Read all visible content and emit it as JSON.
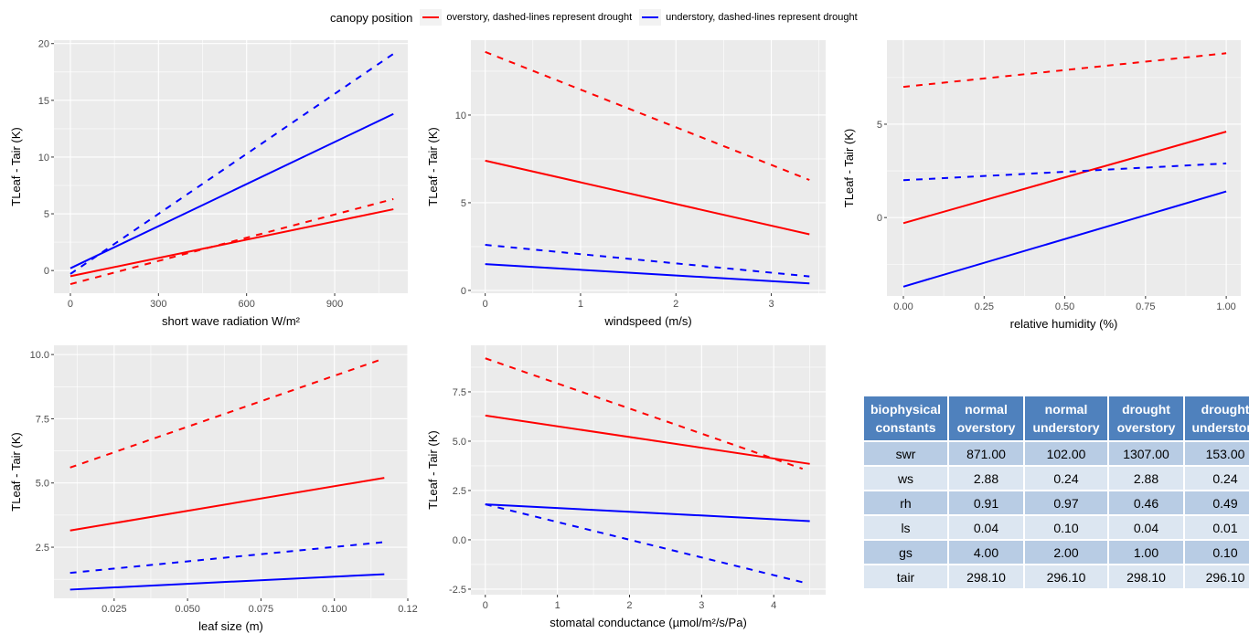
{
  "legend": {
    "title": "canopy position",
    "items": [
      {
        "label": "overstory, dashed-lines represent drought",
        "color": "#FF0000"
      },
      {
        "label": "understory, dashed-lines represent drought",
        "color": "#0000FF"
      }
    ]
  },
  "chart_data": [
    {
      "type": "line",
      "xlabel": "short wave radiation W/m²",
      "ylabel": "TLeaf - Tair (K)",
      "xlim": [
        -56,
        1149
      ],
      "ylim": [
        -2.0,
        20.3
      ],
      "xticks": [
        0,
        300,
        600,
        900
      ],
      "xtick_labels": [
        "0",
        "300",
        "600",
        "900"
      ],
      "yticks": [
        0,
        5,
        10,
        15,
        20
      ],
      "ytick_labels": [
        "0",
        "5",
        "10",
        "15",
        "20"
      ],
      "grid": true,
      "series": [
        {
          "canopy": "overstory",
          "dashed": false,
          "x": [
            0,
            1100
          ],
          "y": [
            -0.5,
            5.4
          ]
        },
        {
          "canopy": "overstory",
          "dashed": true,
          "x": [
            0,
            1100
          ],
          "y": [
            -1.2,
            6.3
          ]
        },
        {
          "canopy": "understory",
          "dashed": false,
          "x": [
            0,
            1100
          ],
          "y": [
            0.2,
            13.8
          ]
        },
        {
          "canopy": "understory",
          "dashed": true,
          "x": [
            0,
            1100
          ],
          "y": [
            -0.3,
            19.1
          ]
        }
      ]
    },
    {
      "type": "line",
      "xlabel": "windspeed (m/s)",
      "ylabel": "TLeaf - Tair (K)",
      "xlim": [
        -0.15,
        3.57
      ],
      "ylim": [
        -0.16,
        14.27
      ],
      "xticks": [
        0,
        1,
        2,
        3
      ],
      "xtick_labels": [
        "0",
        "1",
        "2",
        "3"
      ],
      "yticks": [
        0,
        5,
        10
      ],
      "ytick_labels": [
        "0",
        "5",
        "10"
      ],
      "grid": true,
      "series": [
        {
          "canopy": "overstory",
          "dashed": false,
          "x": [
            0,
            3.4
          ],
          "y": [
            7.4,
            3.2
          ]
        },
        {
          "canopy": "overstory",
          "dashed": true,
          "x": [
            0,
            3.4
          ],
          "y": [
            13.6,
            6.3
          ]
        },
        {
          "canopy": "understory",
          "dashed": false,
          "x": [
            0,
            3.4
          ],
          "y": [
            1.5,
            0.4
          ]
        },
        {
          "canopy": "understory",
          "dashed": true,
          "x": [
            0,
            3.4
          ],
          "y": [
            2.6,
            0.8
          ]
        }
      ]
    },
    {
      "type": "line",
      "xlabel": "relative humidity (%)",
      "ylabel": "TLeaf - Tair (K)",
      "xlim": [
        -0.051,
        1.045
      ],
      "ylim": [
        -4.2,
        9.5
      ],
      "xticks": [
        0,
        0.25,
        0.5,
        0.75,
        1
      ],
      "xtick_labels": [
        "0.00",
        "0.25",
        "0.50",
        "0.75",
        "1.00"
      ],
      "yticks": [
        0,
        5
      ],
      "ytick_labels": [
        "0",
        "5"
      ],
      "grid": true,
      "series": [
        {
          "canopy": "overstory",
          "dashed": false,
          "x": [
            0,
            1
          ],
          "y": [
            -0.3,
            4.6
          ]
        },
        {
          "canopy": "overstory",
          "dashed": true,
          "x": [
            0,
            1
          ],
          "y": [
            7.0,
            8.8
          ]
        },
        {
          "canopy": "understory",
          "dashed": false,
          "x": [
            0,
            1
          ],
          "y": [
            -3.7,
            1.4
          ]
        },
        {
          "canopy": "understory",
          "dashed": true,
          "x": [
            0,
            1
          ],
          "y": [
            2.0,
            2.9
          ]
        }
      ]
    },
    {
      "type": "line",
      "xlabel": "leaf size (m)",
      "ylabel": "TLeaf - Tair (K)",
      "xlim": [
        0.0045,
        0.125
      ],
      "ylim": [
        0.51,
        10.36
      ],
      "xticks": [
        0.025,
        0.05,
        0.075,
        0.1,
        0.125
      ],
      "xtick_labels": [
        "0.025",
        "0.050",
        "0.075",
        "0.100",
        "0.12"
      ],
      "yticks": [
        2.5,
        5,
        7.5,
        10
      ],
      "ytick_labels": [
        "2.5",
        "5.0",
        "7.5",
        "10.0"
      ],
      "grid": true,
      "series": [
        {
          "canopy": "overstory",
          "dashed": false,
          "x": [
            0.01,
            0.117
          ],
          "y": [
            3.15,
            5.2
          ]
        },
        {
          "canopy": "overstory",
          "dashed": true,
          "x": [
            0.01,
            0.117
          ],
          "y": [
            5.6,
            9.85
          ]
        },
        {
          "canopy": "understory",
          "dashed": false,
          "x": [
            0.01,
            0.117
          ],
          "y": [
            0.85,
            1.45
          ]
        },
        {
          "canopy": "understory",
          "dashed": true,
          "x": [
            0.01,
            0.117
          ],
          "y": [
            1.5,
            2.7
          ]
        }
      ]
    },
    {
      "type": "line",
      "xlabel": "stomatal conductance (µmol/m²/s/Pa)",
      "ylabel": "TLeaf - Tair (K)",
      "xlim": [
        -0.2,
        4.72
      ],
      "ylim": [
        -2.78,
        9.86
      ],
      "xticks": [
        0,
        1,
        2,
        3,
        4
      ],
      "xtick_labels": [
        "0",
        "1",
        "2",
        "3",
        "4"
      ],
      "yticks": [
        -2.5,
        0,
        2.5,
        5,
        7.5
      ],
      "ytick_labels": [
        "-2.5",
        "0.0",
        "2.5",
        "5.0",
        "7.5"
      ],
      "grid": true,
      "series": [
        {
          "canopy": "overstory",
          "dashed": false,
          "x": [
            0,
            4.5
          ],
          "y": [
            6.3,
            3.85
          ]
        },
        {
          "canopy": "overstory",
          "dashed": true,
          "x": [
            0,
            4.4
          ],
          "y": [
            9.2,
            3.6
          ]
        },
        {
          "canopy": "understory",
          "dashed": false,
          "x": [
            0,
            4.5
          ],
          "y": [
            1.8,
            0.95
          ]
        },
        {
          "canopy": "understory",
          "dashed": true,
          "x": [
            0,
            4.4
          ],
          "y": [
            1.8,
            -2.15
          ]
        }
      ]
    }
  ],
  "table": {
    "headers": [
      "biophysical constants",
      "normal overstory",
      "normal understory",
      "drought overstory",
      "drought understory"
    ],
    "rows": [
      [
        "swr",
        "871.00",
        "102.00",
        "1307.00",
        "153.00"
      ],
      [
        "ws",
        "2.88",
        "0.24",
        "2.88",
        "0.24"
      ],
      [
        "rh",
        "0.91",
        "0.97",
        "0.46",
        "0.49"
      ],
      [
        "ls",
        "0.04",
        "0.10",
        "0.04",
        "0.01"
      ],
      [
        "gs",
        "4.00",
        "2.00",
        "1.00",
        "0.10"
      ],
      [
        "tair",
        "298.10",
        "296.10",
        "298.10",
        "296.10"
      ]
    ]
  }
}
